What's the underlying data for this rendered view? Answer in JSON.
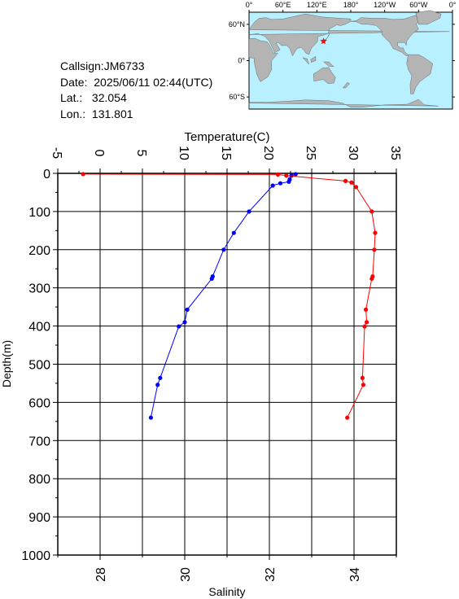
{
  "station": {
    "callsign_line": "Callsign:JM6733",
    "date_line": "Date:  2025/06/11 02:44(UTC)",
    "lat_line": "Lat.:   32.054",
    "lon_line": "Lon.:  131.801"
  },
  "map": {
    "lon_labels": [
      "0°",
      "60°E",
      "120°E",
      "180°",
      "120°W",
      "60°W",
      "0°"
    ],
    "lat_labels": [
      "60°N",
      "0°",
      "60°S"
    ],
    "ocean_color": "#b8f0ff",
    "land_color": "#b4b4b4",
    "marker": {
      "lon": 131.8,
      "lat": 32.05,
      "color": "#ff0000"
    }
  },
  "chart_data": {
    "type": "line",
    "ylabel": "Depth(m)",
    "y_ticks": [
      "0",
      "100",
      "200",
      "300",
      "400",
      "500",
      "600",
      "700",
      "800",
      "900",
      "1000"
    ],
    "ylim": [
      0,
      1000
    ],
    "inverted_y": true,
    "top_axis": {
      "label": "Temperature(C)",
      "range": [
        -5,
        35
      ],
      "ticks": [
        "-5",
        "0",
        "5",
        "10",
        "15",
        "20",
        "25",
        "30",
        "35"
      ]
    },
    "bottom_axis": {
      "label": "Salinity",
      "range": [
        27,
        35
      ],
      "ticks": [
        "28",
        "30",
        "32",
        "34"
      ]
    },
    "grid": true,
    "series": [
      {
        "quantity": "temperature",
        "axis": "top",
        "color": "#0000ff",
        "points": [
          {
            "v": 23.1,
            "d": 2
          },
          {
            "v": 22.6,
            "d": 6
          },
          {
            "v": 22.4,
            "d": 16
          },
          {
            "v": 22.3,
            "d": 22
          },
          {
            "v": 21.3,
            "d": 26
          },
          {
            "v": 20.4,
            "d": 32
          },
          {
            "v": 17.6,
            "d": 100
          },
          {
            "v": 15.8,
            "d": 156
          },
          {
            "v": 14.6,
            "d": 200
          },
          {
            "v": 13.3,
            "d": 270
          },
          {
            "v": 13.2,
            "d": 276
          },
          {
            "v": 10.3,
            "d": 357
          },
          {
            "v": 10.0,
            "d": 390
          },
          {
            "v": 9.3,
            "d": 401
          },
          {
            "v": 7.1,
            "d": 536
          },
          {
            "v": 6.8,
            "d": 554
          },
          {
            "v": 6.0,
            "d": 640
          }
        ]
      },
      {
        "quantity": "salinity",
        "axis": "bottom",
        "color": "#ff0000",
        "points": [
          {
            "v": 27.6,
            "d": 2
          },
          {
            "v": 32.2,
            "d": 3
          },
          {
            "v": 32.4,
            "d": 6
          },
          {
            "v": 33.8,
            "d": 20
          },
          {
            "v": 33.94,
            "d": 24
          },
          {
            "v": 34.05,
            "d": 36
          },
          {
            "v": 34.42,
            "d": 100
          },
          {
            "v": 34.5,
            "d": 156
          },
          {
            "v": 34.48,
            "d": 200
          },
          {
            "v": 34.44,
            "d": 270
          },
          {
            "v": 34.42,
            "d": 276
          },
          {
            "v": 34.28,
            "d": 357
          },
          {
            "v": 34.3,
            "d": 390
          },
          {
            "v": 34.25,
            "d": 401
          },
          {
            "v": 34.2,
            "d": 536
          },
          {
            "v": 34.22,
            "d": 554
          },
          {
            "v": 33.84,
            "d": 640
          }
        ]
      }
    ]
  }
}
